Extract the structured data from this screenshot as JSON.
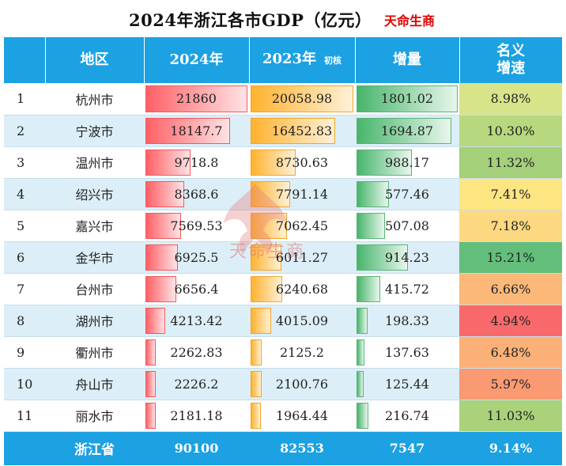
{
  "header": {
    "title": "2024年浙江各市GDP（亿元）",
    "brand": "天命生商"
  },
  "chart_data": {
    "type": "table",
    "columns": [
      "",
      "地区",
      "2024年",
      "2023年",
      "初核",
      "增量",
      "名义增速"
    ],
    "rows": [
      {
        "rank": "1",
        "city": "杭州市",
        "y2024": "21860",
        "y2023": "20058.98",
        "inc": "1801.02",
        "rate": "8.98%",
        "v2024": 21860,
        "v2023": 20058.98,
        "vinc": 1801.02,
        "rate_color": "#d9e48a"
      },
      {
        "rank": "2",
        "city": "宁波市",
        "y2024": "18147.7",
        "y2023": "16452.83",
        "inc": "1694.87",
        "rate": "10.30%",
        "v2024": 18147.7,
        "v2023": 16452.83,
        "vinc": 1694.87,
        "rate_color": "#b7d87e"
      },
      {
        "rank": "3",
        "city": "温州市",
        "y2024": "9718.8",
        "y2023": "8730.63",
        "inc": "988.17",
        "rate": "11.32%",
        "v2024": 9718.8,
        "v2023": 8730.63,
        "vinc": 988.17,
        "rate_color": "#a4d07a"
      },
      {
        "rank": "4",
        "city": "绍兴市",
        "y2024": "8368.6",
        "y2023": "7791.14",
        "inc": "577.46",
        "rate": "7.41%",
        "v2024": 8368.6,
        "v2023": 7791.14,
        "vinc": 577.46,
        "rate_color": "#fde582"
      },
      {
        "rank": "5",
        "city": "嘉兴市",
        "y2024": "7569.53",
        "y2023": "7062.45",
        "inc": "507.08",
        "rate": "7.18%",
        "v2024": 7569.53,
        "v2023": 7062.45,
        "vinc": 507.08,
        "rate_color": "#fcd980"
      },
      {
        "rank": "6",
        "city": "金华市",
        "y2024": "6925.5",
        "y2023": "6011.27",
        "inc": "914.23",
        "rate": "15.21%",
        "v2024": 6925.5,
        "v2023": 6011.27,
        "vinc": 914.23,
        "rate_color": "#63be7b"
      },
      {
        "rank": "7",
        "city": "台州市",
        "y2024": "6656.4",
        "y2023": "6240.68",
        "inc": "415.72",
        "rate": "6.66%",
        "v2024": 6656.4,
        "v2023": 6240.68,
        "vinc": 415.72,
        "rate_color": "#fbb879"
      },
      {
        "rank": "8",
        "city": "湖州市",
        "y2024": "4213.42",
        "y2023": "4015.09",
        "inc": "198.33",
        "rate": "4.94%",
        "v2024": 4213.42,
        "v2023": 4015.09,
        "vinc": 198.33,
        "rate_color": "#f8696b"
      },
      {
        "rank": "9",
        "city": "衢州市",
        "y2024": "2262.83",
        "y2023": "2125.2",
        "inc": "137.63",
        "rate": "6.48%",
        "v2024": 2262.83,
        "v2023": 2125.2,
        "vinc": 137.63,
        "rate_color": "#fbb077"
      },
      {
        "rank": "10",
        "city": "舟山市",
        "y2024": "2226.2",
        "y2023": "2100.76",
        "inc": "125.44",
        "rate": "5.97%",
        "v2024": 2226.2,
        "v2023": 2100.76,
        "vinc": 125.44,
        "rate_color": "#fa9a73"
      },
      {
        "rank": "11",
        "city": "丽水市",
        "y2024": "2181.18",
        "y2023": "1964.44",
        "inc": "216.74",
        "rate": "11.03%",
        "v2024": 2181.18,
        "v2023": 1964.44,
        "vinc": 216.74,
        "rate_color": "#aad27b"
      }
    ],
    "total": {
      "city": "浙江省",
      "y2024": "90100",
      "y2023": "82553",
      "inc": "7547",
      "rate": "9.14%"
    }
  },
  "table": {
    "headers": {
      "region": "地区",
      "y2024": "2024年",
      "y2023": "2023年",
      "y2023_note": "初核",
      "inc": "增量",
      "rate_line1": "名义",
      "rate_line2": "增速"
    }
  },
  "watermark": {
    "text": "天命生商"
  },
  "colors": {
    "header_bg": "#1ca1e2",
    "alt_row_bg": "#dceef7",
    "bar_2024": "#ff6066",
    "bar_2023": "#ffb22e",
    "bar_inc": "#48b56c",
    "brand_red": "#e00000"
  }
}
